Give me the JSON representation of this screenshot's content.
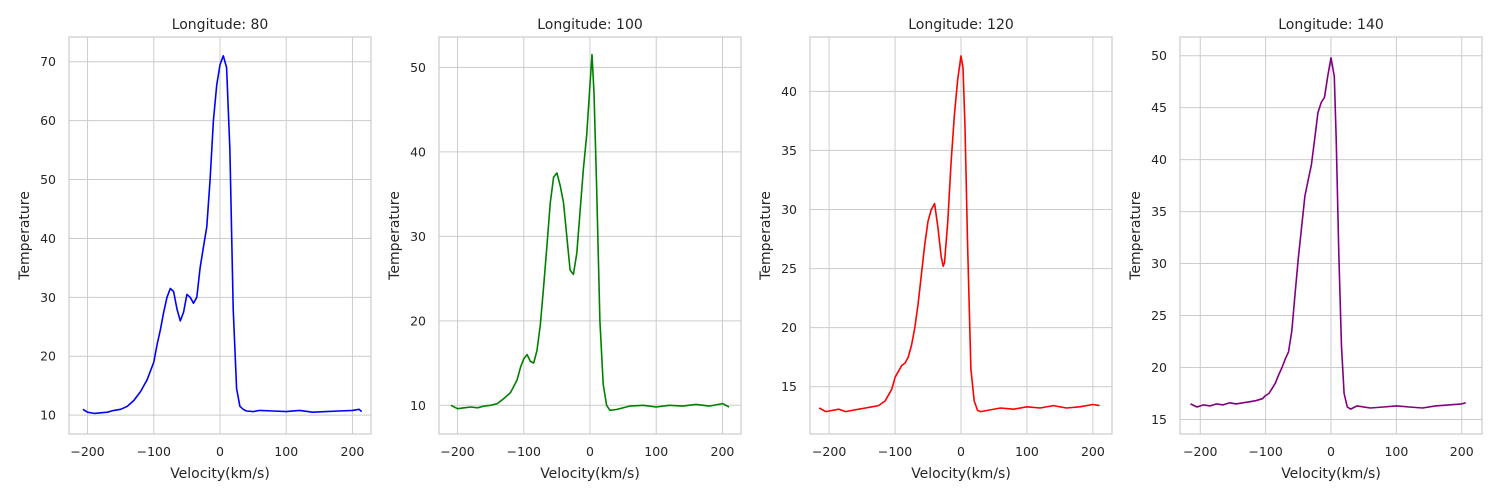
{
  "chart_data": [
    {
      "type": "line",
      "title": "Longitude: 80",
      "xlabel": "Velocity(km/s)",
      "ylabel": "Temperature",
      "xlim": [
        -228,
        228
      ],
      "ylim": [
        6.8,
        74.2
      ],
      "xticks": [
        -200,
        -100,
        0,
        100,
        200
      ],
      "yticks": [
        10,
        20,
        30,
        40,
        50,
        60,
        70
      ],
      "grid": true,
      "color": "#0000ff",
      "series": [
        {
          "x": [
            -207,
            -200,
            -190,
            -180,
            -170,
            -160,
            -150,
            -140,
            -130,
            -120,
            -110,
            -100,
            -95,
            -90,
            -85,
            -80,
            -75,
            -70,
            -65,
            -60,
            -55,
            -50,
            -45,
            -40,
            -35,
            -30,
            -25,
            -20,
            -15,
            -10,
            -5,
            0,
            5,
            10,
            15,
            20,
            25,
            30,
            35,
            40,
            50,
            60,
            80,
            100,
            120,
            140,
            160,
            180,
            200,
            210,
            214
          ],
          "y": [
            11,
            10.5,
            10.3,
            10.4,
            10.5,
            10.8,
            11.0,
            11.5,
            12.5,
            14.0,
            16.0,
            19.0,
            22.0,
            24.5,
            27.5,
            30.0,
            31.5,
            31.0,
            28.0,
            26.0,
            27.5,
            30.5,
            30.0,
            29.0,
            30.0,
            35.0,
            38.5,
            42.0,
            50.0,
            60.0,
            66.0,
            69.5,
            71.0,
            69.0,
            55.0,
            28.0,
            14.5,
            11.5,
            11.0,
            10.7,
            10.6,
            10.8,
            10.7,
            10.6,
            10.8,
            10.5,
            10.6,
            10.7,
            10.8,
            11.0,
            10.6
          ]
        }
      ]
    },
    {
      "type": "line",
      "title": "Longitude: 100",
      "xlabel": "Velocity(km/s)",
      "ylabel": "Temperature",
      "xlim": [
        -228,
        228
      ],
      "ylim": [
        6.6,
        53.6
      ],
      "xticks": [
        -200,
        -100,
        0,
        100,
        200
      ],
      "yticks": [
        10,
        20,
        30,
        40,
        50
      ],
      "grid": true,
      "color": "#008000",
      "series": [
        {
          "x": [
            -210,
            -200,
            -190,
            -180,
            -170,
            -160,
            -150,
            -140,
            -130,
            -120,
            -110,
            -105,
            -100,
            -95,
            -90,
            -85,
            -80,
            -75,
            -70,
            -65,
            -60,
            -55,
            -50,
            -45,
            -40,
            -35,
            -30,
            -25,
            -20,
            -15,
            -10,
            -5,
            0,
            3,
            6,
            10,
            15,
            20,
            25,
            30,
            40,
            60,
            80,
            100,
            120,
            140,
            160,
            180,
            200,
            210
          ],
          "y": [
            10,
            9.6,
            9.7,
            9.8,
            9.7,
            9.9,
            10.0,
            10.2,
            10.8,
            11.5,
            13.0,
            14.5,
            15.5,
            16.0,
            15.2,
            15.0,
            16.5,
            19.5,
            24.0,
            29.0,
            34.0,
            37.0,
            37.5,
            36.0,
            34.0,
            30.0,
            26.0,
            25.5,
            28.0,
            33.0,
            38.0,
            42.0,
            48.0,
            51.5,
            47.0,
            36.0,
            20.0,
            12.5,
            10.0,
            9.4,
            9.5,
            9.9,
            10.0,
            9.8,
            10.0,
            9.9,
            10.1,
            9.9,
            10.2,
            9.8
          ]
        }
      ]
    },
    {
      "type": "line",
      "title": "Longitude: 120",
      "xlabel": "Velocity(km/s)",
      "ylabel": "Temperature",
      "xlim": [
        -229,
        229
      ],
      "ylim": [
        11.0,
        44.6
      ],
      "xticks": [
        -200,
        -100,
        0,
        100,
        200
      ],
      "yticks": [
        15,
        20,
        25,
        30,
        35,
        40
      ],
      "grid": true,
      "color": "#ff0000",
      "series": [
        {
          "x": [
            -215,
            -205,
            -195,
            -185,
            -175,
            -165,
            -155,
            -145,
            -135,
            -125,
            -115,
            -105,
            -100,
            -95,
            -90,
            -85,
            -80,
            -75,
            -70,
            -65,
            -60,
            -55,
            -50,
            -45,
            -40,
            -35,
            -30,
            -27,
            -25,
            -20,
            -15,
            -10,
            -5,
            0,
            3,
            6,
            10,
            15,
            20,
            25,
            30,
            40,
            60,
            80,
            100,
            120,
            140,
            160,
            180,
            200,
            210
          ],
          "y": [
            13.2,
            12.9,
            13.0,
            13.1,
            12.9,
            13.0,
            13.1,
            13.2,
            13.3,
            13.4,
            13.8,
            14.8,
            15.8,
            16.3,
            16.8,
            17.0,
            17.5,
            18.5,
            20.0,
            22.0,
            24.5,
            27.0,
            29.0,
            30.0,
            30.5,
            28.5,
            26.0,
            25.2,
            25.5,
            29.0,
            34.0,
            38.0,
            41.0,
            43.0,
            42.0,
            37.0,
            27.0,
            16.5,
            13.8,
            13.0,
            12.9,
            13.0,
            13.2,
            13.1,
            13.3,
            13.2,
            13.4,
            13.2,
            13.3,
            13.5,
            13.4
          ]
        }
      ]
    },
    {
      "type": "line",
      "title": "Longitude: 140",
      "xlabel": "Velocity(km/s)",
      "ylabel": "Temperature",
      "xlim": [
        -231,
        231
      ],
      "ylim": [
        13.6,
        51.8
      ],
      "xticks": [
        -200,
        -100,
        0,
        100,
        200
      ],
      "yticks": [
        15,
        20,
        25,
        30,
        35,
        40,
        45,
        50
      ],
      "grid": true,
      "color": "#800080",
      "series": [
        {
          "x": [
            -215,
            -205,
            -195,
            -185,
            -175,
            -165,
            -155,
            -145,
            -135,
            -125,
            -115,
            -105,
            -100,
            -95,
            -90,
            -85,
            -80,
            -75,
            -70,
            -65,
            -60,
            -55,
            -50,
            -45,
            -40,
            -35,
            -30,
            -25,
            -20,
            -15,
            -10,
            -5,
            0,
            5,
            8,
            12,
            16,
            20,
            25,
            30,
            40,
            60,
            80,
            100,
            120,
            140,
            160,
            180,
            200,
            206
          ],
          "y": [
            16.5,
            16.2,
            16.4,
            16.3,
            16.5,
            16.4,
            16.6,
            16.5,
            16.6,
            16.7,
            16.8,
            17.0,
            17.3,
            17.5,
            18.0,
            18.5,
            19.3,
            20.0,
            20.8,
            21.5,
            23.5,
            27.0,
            30.5,
            33.5,
            36.5,
            38.0,
            39.5,
            42.0,
            44.5,
            45.5,
            46.0,
            48.0,
            49.8,
            48.0,
            42.0,
            31.0,
            22.0,
            17.5,
            16.2,
            16.0,
            16.3,
            16.1,
            16.2,
            16.3,
            16.2,
            16.1,
            16.3,
            16.4,
            16.5,
            16.6
          ]
        }
      ]
    }
  ]
}
